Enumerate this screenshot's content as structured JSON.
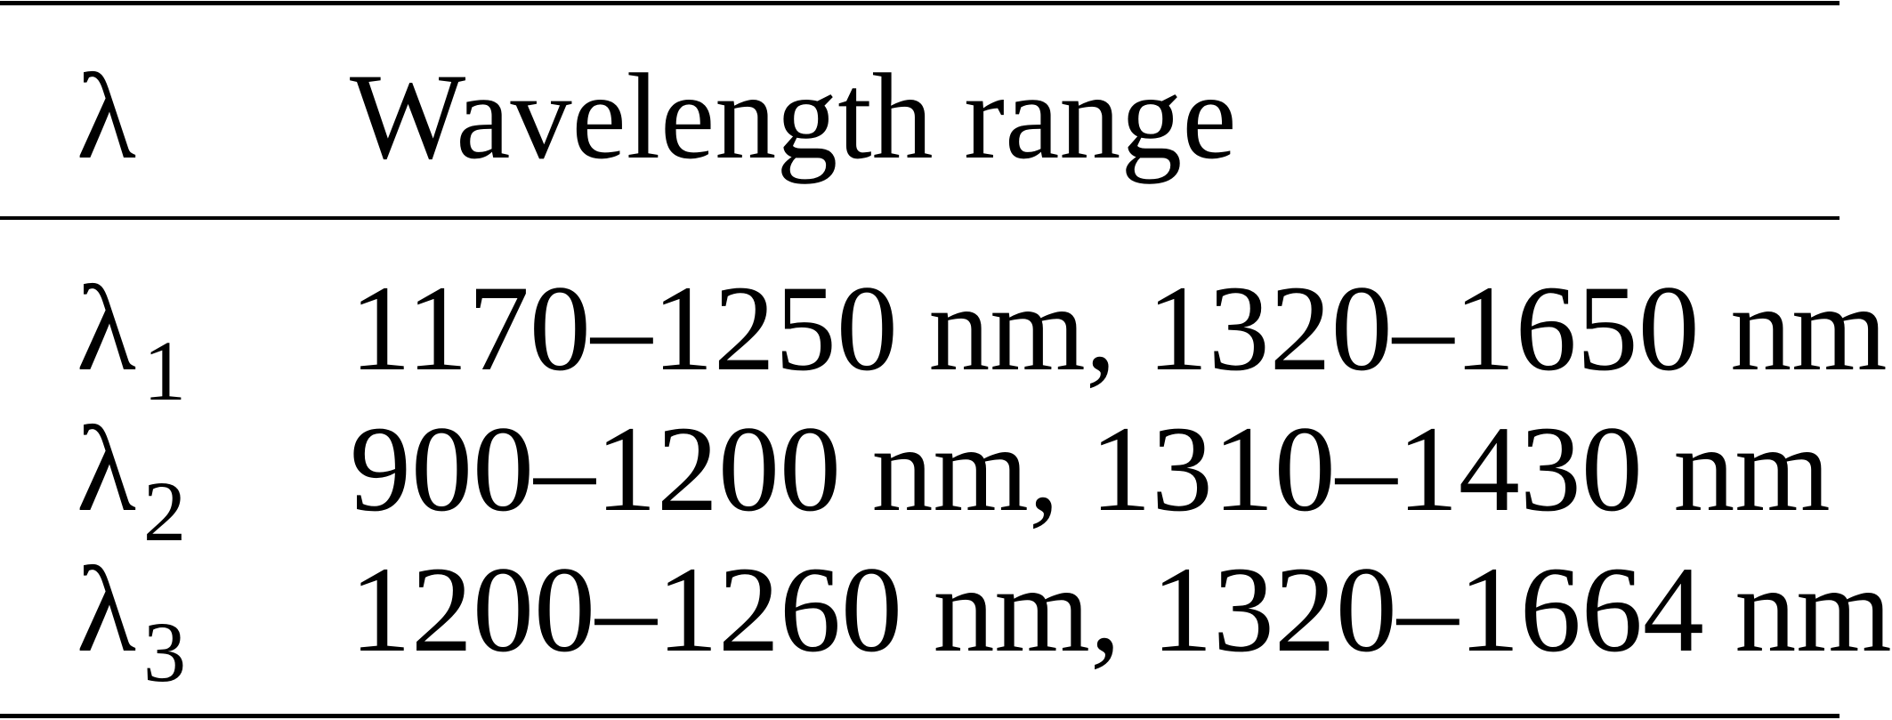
{
  "table": {
    "headers": [
      "λ",
      "Wavelength range"
    ],
    "rows": [
      {
        "symbol": "λ",
        "subscript": "1",
        "range": "1170–1250 nm, 1320–1650 nm"
      },
      {
        "symbol": "λ",
        "subscript": "2",
        "range": "900–1200 nm, 1310–1430 nm"
      },
      {
        "symbol": "λ",
        "subscript": "3",
        "range": "1200–1260 nm, 1320–1664 nm"
      }
    ]
  }
}
